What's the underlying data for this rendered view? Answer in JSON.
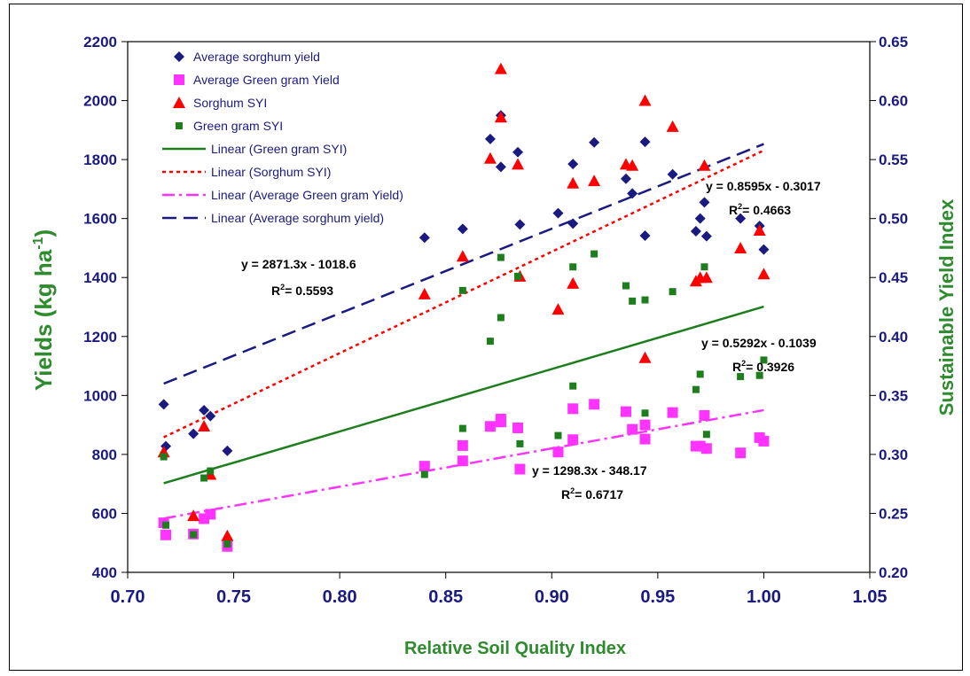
{
  "chart_data": {
    "type": "scatter",
    "xlabel": "Relative Soil Quality Index",
    "ylabel_left": "Yields (kg ha",
    "ylabel_left_sup": "-1",
    "ylabel_left_close": ")",
    "ylabel_right": "Sustainable Yield Index",
    "xlim": [
      0.7,
      1.05
    ],
    "x_ticks": [
      "0.70",
      "0.75",
      "0.80",
      "0.85",
      "0.90",
      "0.95",
      "1.00",
      "1.05"
    ],
    "ylim_left": [
      400,
      2200
    ],
    "y_left_ticks": [
      "400",
      "600",
      "800",
      "1000",
      "1200",
      "1400",
      "1600",
      "1800",
      "2000",
      "2200"
    ],
    "ylim_right": [
      0.2,
      0.65
    ],
    "y_right_ticks": [
      "0.20",
      "0.25",
      "0.30",
      "0.35",
      "0.40",
      "0.45",
      "0.50",
      "0.55",
      "0.60",
      "0.65"
    ],
    "grid": false,
    "legend_position": "top-left",
    "colors": {
      "sorghum_yield": "#1a1a80",
      "greengram_yield": "#ff33ff",
      "sorghum_syi": "#ff0000",
      "greengram_syi": "#1e7e1e",
      "axis_text": "#1a1a80",
      "axis_title_green": "#2e8b2e"
    },
    "series": [
      {
        "name": "Average sorghum yield",
        "marker": "diamond",
        "axis": "left",
        "points": [
          [
            0.717,
            970
          ],
          [
            0.718,
            828
          ],
          [
            0.731,
            870
          ],
          [
            0.736,
            950
          ],
          [
            0.739,
            930
          ],
          [
            0.747,
            812
          ],
          [
            0.84,
            1535
          ],
          [
            0.858,
            1565
          ],
          [
            0.871,
            1870
          ],
          [
            0.876,
            1950
          ],
          [
            0.876,
            1775
          ],
          [
            0.884,
            1825
          ],
          [
            0.885,
            1580
          ],
          [
            0.903,
            1618
          ],
          [
            0.91,
            1785
          ],
          [
            0.91,
            1583
          ],
          [
            0.92,
            1858
          ],
          [
            0.935,
            1735
          ],
          [
            0.938,
            1685
          ],
          [
            0.944,
            1860
          ],
          [
            0.944,
            1542
          ],
          [
            0.957,
            1750
          ],
          [
            0.968,
            1557
          ],
          [
            0.97,
            1600
          ],
          [
            0.972,
            1655
          ],
          [
            0.973,
            1540
          ],
          [
            0.989,
            1600
          ],
          [
            0.998,
            1575
          ],
          [
            1.0,
            1495
          ]
        ]
      },
      {
        "name": "Average Green gram Yield",
        "marker": "square",
        "axis": "left",
        "points": [
          [
            0.717,
            568
          ],
          [
            0.718,
            527
          ],
          [
            0.731,
            530
          ],
          [
            0.736,
            582
          ],
          [
            0.739,
            597
          ],
          [
            0.747,
            488
          ],
          [
            0.84,
            760
          ],
          [
            0.858,
            830
          ],
          [
            0.858,
            778
          ],
          [
            0.871,
            895
          ],
          [
            0.876,
            910
          ],
          [
            0.876,
            920
          ],
          [
            0.884,
            890
          ],
          [
            0.885,
            750
          ],
          [
            0.903,
            808
          ],
          [
            0.91,
            955
          ],
          [
            0.91,
            850
          ],
          [
            0.92,
            970
          ],
          [
            0.935,
            945
          ],
          [
            0.938,
            885
          ],
          [
            0.944,
            900
          ],
          [
            0.944,
            852
          ],
          [
            0.957,
            942
          ],
          [
            0.968,
            828
          ],
          [
            0.97,
            828
          ],
          [
            0.972,
            932
          ],
          [
            0.973,
            820
          ],
          [
            0.989,
            805
          ],
          [
            0.998,
            857
          ],
          [
            1.0,
            845
          ]
        ]
      },
      {
        "name": "Sorghum SYI",
        "marker": "triangle",
        "axis": "right",
        "points": [
          [
            0.717,
            0.302
          ],
          [
            0.731,
            0.248
          ],
          [
            0.736,
            0.324
          ],
          [
            0.739,
            0.283
          ],
          [
            0.747,
            0.231
          ],
          [
            0.84,
            0.436
          ],
          [
            0.858,
            0.468
          ],
          [
            0.871,
            0.551
          ],
          [
            0.876,
            0.627
          ],
          [
            0.876,
            0.586
          ],
          [
            0.884,
            0.546
          ],
          [
            0.885,
            0.451
          ],
          [
            0.903,
            0.423
          ],
          [
            0.91,
            0.53
          ],
          [
            0.91,
            0.445
          ],
          [
            0.92,
            0.532
          ],
          [
            0.935,
            0.546
          ],
          [
            0.938,
            0.545
          ],
          [
            0.944,
            0.6
          ],
          [
            0.944,
            0.382
          ],
          [
            0.957,
            0.578
          ],
          [
            0.968,
            0.447
          ],
          [
            0.97,
            0.45
          ],
          [
            0.972,
            0.545
          ],
          [
            0.973,
            0.45
          ],
          [
            0.989,
            0.475
          ],
          [
            0.998,
            0.49
          ],
          [
            1.0,
            0.453
          ]
        ]
      },
      {
        "name": "Green gram SYI",
        "marker": "small-square",
        "axis": "right",
        "points": [
          [
            0.717,
            0.298
          ],
          [
            0.718,
            0.24
          ],
          [
            0.731,
            0.232
          ],
          [
            0.736,
            0.28
          ],
          [
            0.739,
            0.286
          ],
          [
            0.747,
            0.224
          ],
          [
            0.84,
            0.283
          ],
          [
            0.858,
            0.322
          ],
          [
            0.858,
            0.439
          ],
          [
            0.871,
            0.396
          ],
          [
            0.876,
            0.467
          ],
          [
            0.876,
            0.416
          ],
          [
            0.884,
            0.451
          ],
          [
            0.885,
            0.309
          ],
          [
            0.903,
            0.316
          ],
          [
            0.91,
            0.459
          ],
          [
            0.91,
            0.358
          ],
          [
            0.92,
            0.47
          ],
          [
            0.935,
            0.443
          ],
          [
            0.938,
            0.43
          ],
          [
            0.944,
            0.431
          ],
          [
            0.944,
            0.335
          ],
          [
            0.957,
            0.438
          ],
          [
            0.968,
            0.355
          ],
          [
            0.97,
            0.368
          ],
          [
            0.972,
            0.459
          ],
          [
            0.973,
            0.317
          ],
          [
            0.989,
            0.366
          ],
          [
            0.998,
            0.367
          ],
          [
            1.0,
            0.38
          ]
        ]
      }
    ],
    "trendlines": [
      {
        "name": "Linear (Green gram SYI)",
        "style": "solid",
        "color_key": "greengram_syi",
        "axis": "right",
        "slope": 0.5292,
        "intercept": -0.1039,
        "x_range": [
          0.717,
          1.0
        ]
      },
      {
        "name": "Linear (Sorghum SYI)",
        "style": "dotted",
        "color_key": "sorghum_syi",
        "axis": "right",
        "slope": 0.8595,
        "intercept": -0.3017,
        "x_range": [
          0.717,
          1.0
        ]
      },
      {
        "name": "Linear (Average Green gram Yield)",
        "style": "dashdot",
        "color_key": "greengram_yield",
        "axis": "left",
        "slope": 1298.3,
        "intercept": -348.17,
        "x_range": [
          0.717,
          1.0
        ]
      },
      {
        "name": "Linear (Average sorghum yield)",
        "style": "dashed",
        "color_key": "sorghum_yield",
        "axis": "left",
        "slope": 2871.3,
        "intercept": -1018.6,
        "x_range": [
          0.717,
          1.0
        ]
      }
    ],
    "annotations": [
      {
        "eq": "y = 2871.3x - 1018.6",
        "r2": "= 0.5593"
      },
      {
        "eq": "y = 0.8595x - 0.3017",
        "r2": "= 0.4663"
      },
      {
        "eq": "y = 0.5292x - 0.1039",
        "r2": "= 0.3926"
      },
      {
        "eq": "y = 1298.3x - 348.17",
        "r2": "= 0.6717"
      }
    ]
  }
}
